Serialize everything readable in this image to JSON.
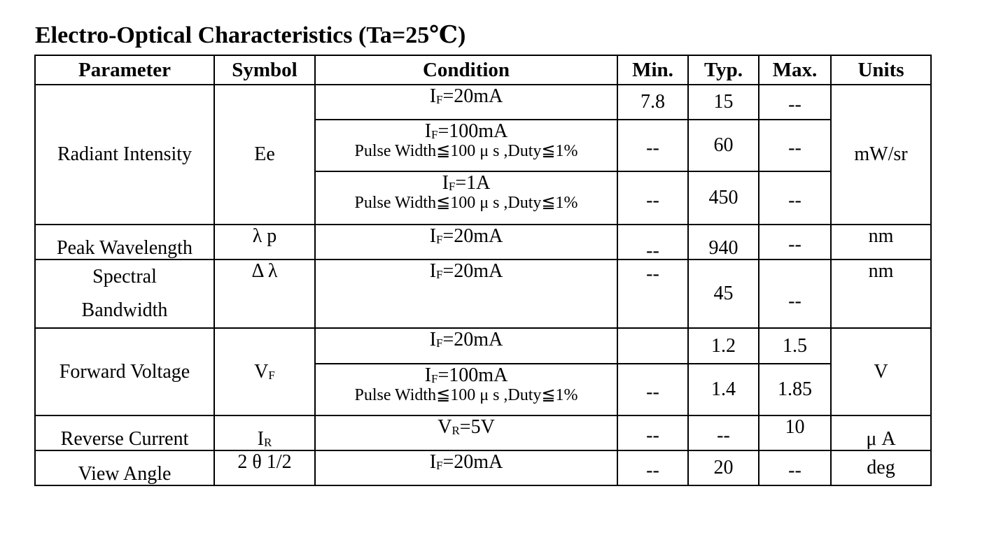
{
  "title": "Electro-Optical Characteristics (Ta=25℃)",
  "headers": {
    "parameter": "Parameter",
    "symbol": "Symbol",
    "condition": "Condition",
    "min": "Min.",
    "typ": "Typ.",
    "max": "Max.",
    "units": "Units"
  },
  "rows": {
    "radiant": {
      "parameter": "Radiant Intensity",
      "symbol": "Ee",
      "units": "mW/sr",
      "sub": [
        {
          "cond_var": "I",
          "cond_sub": "F",
          "cond_val": "=20mA",
          "note": "",
          "min": "7.8",
          "typ": "15",
          "max": "--"
        },
        {
          "cond_var": "I",
          "cond_sub": "F",
          "cond_val": "=100mA",
          "note": "Pulse Width≦100 μ s ,Duty≦1%",
          "min": "--",
          "typ": "60",
          "max": "--"
        },
        {
          "cond_var": "I",
          "cond_sub": "F",
          "cond_val": "=1A",
          "note": "Pulse Width≦100 μ s ,Duty≦1%",
          "min": "--",
          "typ": "450",
          "max": "--"
        }
      ]
    },
    "peak": {
      "parameter": "Peak Wavelength",
      "symbol": "λ p",
      "cond_var": "I",
      "cond_sub": "F",
      "cond_val": "=20mA",
      "min": "--",
      "typ": "940",
      "max": "--",
      "units": "nm"
    },
    "spectral": {
      "parameter_line1": "Spectral",
      "parameter_line2": "Bandwidth",
      "symbol": "Δ λ",
      "cond_var": "I",
      "cond_sub": "F",
      "cond_val": "=20mA",
      "min": "--",
      "typ": "45",
      "max": "--",
      "units": "nm"
    },
    "forward": {
      "parameter": "Forward Voltage",
      "symbol_var": "V",
      "symbol_sub": "F",
      "units": "V",
      "sub": [
        {
          "cond_var": "I",
          "cond_sub": "F",
          "cond_val": "=20mA",
          "note": "",
          "min": "",
          "typ": "1.2",
          "max": "1.5"
        },
        {
          "cond_var": "I",
          "cond_sub": "F",
          "cond_val": "=100mA",
          "note": "Pulse Width≦100 μ s ,Duty≦1%",
          "min": "--",
          "typ": "1.4",
          "max": "1.85"
        }
      ]
    },
    "reverse": {
      "parameter": "Reverse Current",
      "symbol_var": "I",
      "symbol_sub": "R",
      "cond_var": "V",
      "cond_sub": "R",
      "cond_val": "=5V",
      "min": "--",
      "typ": "--",
      "max": "10",
      "units": "μ A"
    },
    "view": {
      "parameter": "View Angle",
      "symbol": "2 θ 1/2",
      "cond_var": "I",
      "cond_sub": "F",
      "cond_val": "=20mA",
      "min": "--",
      "typ": "20",
      "max": "--",
      "units": "deg"
    }
  }
}
